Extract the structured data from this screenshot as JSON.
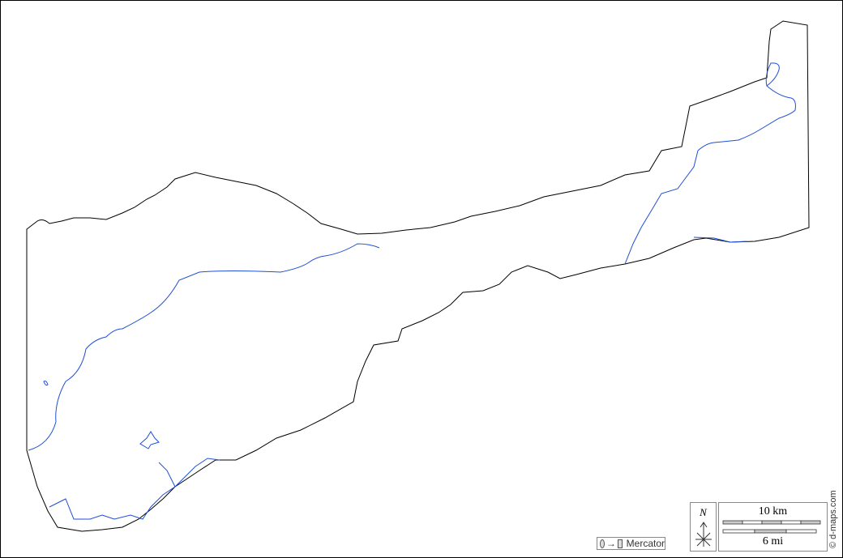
{
  "map": {
    "colors": {
      "boundary": "#000000",
      "rivers": "#1f4fd6",
      "background": "#ffffff"
    },
    "legend": {
      "projection_label": "Mercator",
      "north_label": "N",
      "scale_km_label": "10 km",
      "scale_mi_label": "6 mi"
    },
    "credit": "© d-maps.com"
  }
}
